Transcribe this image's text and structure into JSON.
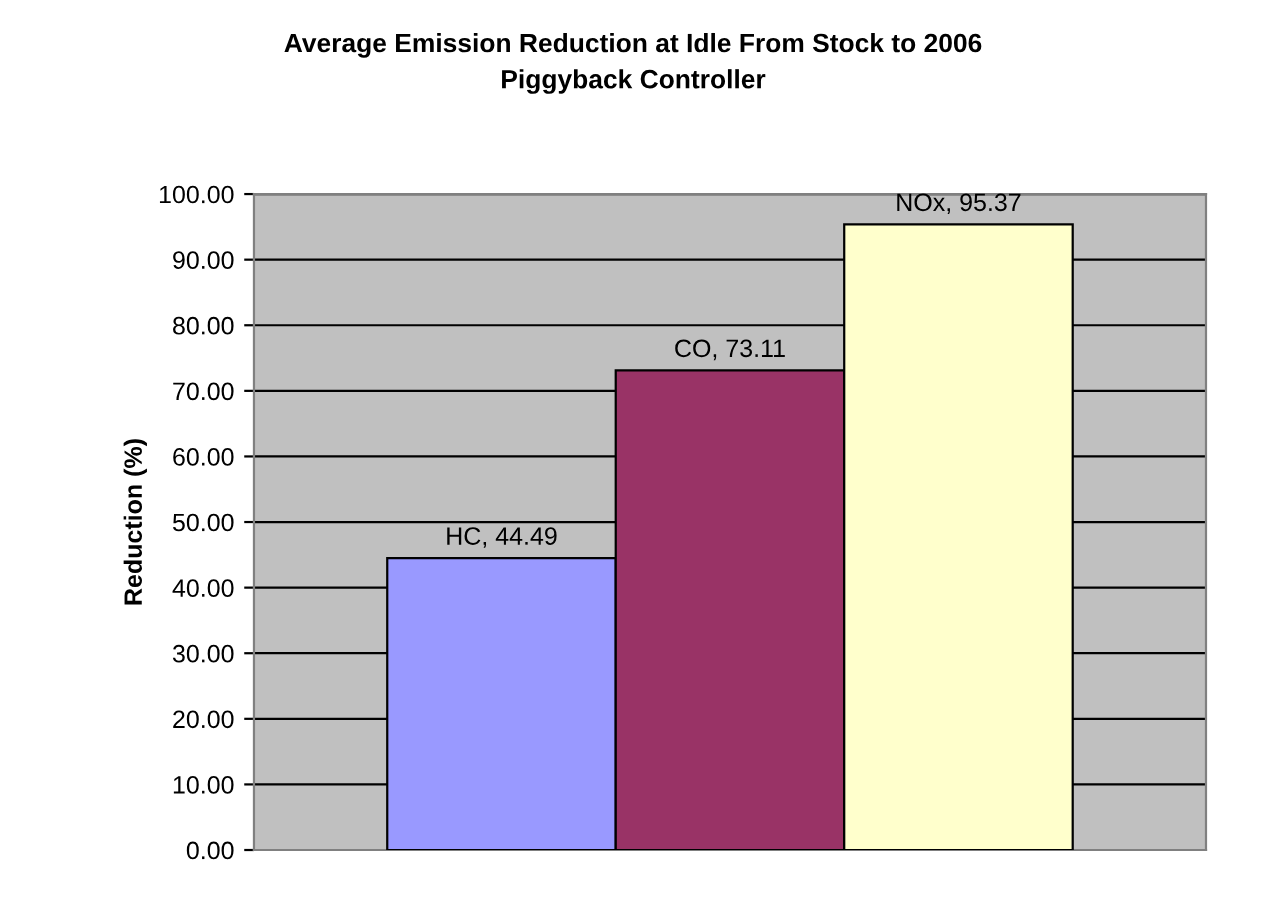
{
  "chart_data": {
    "type": "bar",
    "title": "Average Emission Reduction at Idle From Stock to 2006\nPiggyback Controller",
    "ylabel": "Reduction (%)",
    "categories": [
      null
    ],
    "series": [
      {
        "color": "#9999ff",
        "values": [
          44.49
        ],
        "value_labels": [
          "HC, 44.49"
        ]
      },
      {
        "color": "#993366",
        "values": [
          73.11
        ],
        "value_labels": [
          "CO, 73.11"
        ]
      },
      {
        "color": "#ffffcc",
        "values": [
          95.37
        ],
        "value_labels": [
          "NOx, 95.37"
        ]
      }
    ],
    "ylim": [
      0,
      100
    ],
    "yticks": [
      {
        "value": 0,
        "label": "0.00"
      },
      {
        "value": 10,
        "label": "10.00"
      },
      {
        "value": 20,
        "label": "20.00"
      },
      {
        "value": 30,
        "label": "30.00"
      },
      {
        "value": 40,
        "label": "40.00"
      },
      {
        "value": 50,
        "label": "50.00"
      },
      {
        "value": 60,
        "label": "60.00"
      },
      {
        "value": 70,
        "label": "70.00"
      },
      {
        "value": 80,
        "label": "80.00"
      },
      {
        "value": 90,
        "label": "90.00"
      },
      {
        "value": 100,
        "label": "100.00"
      }
    ],
    "grid": "y",
    "legend": false
  }
}
